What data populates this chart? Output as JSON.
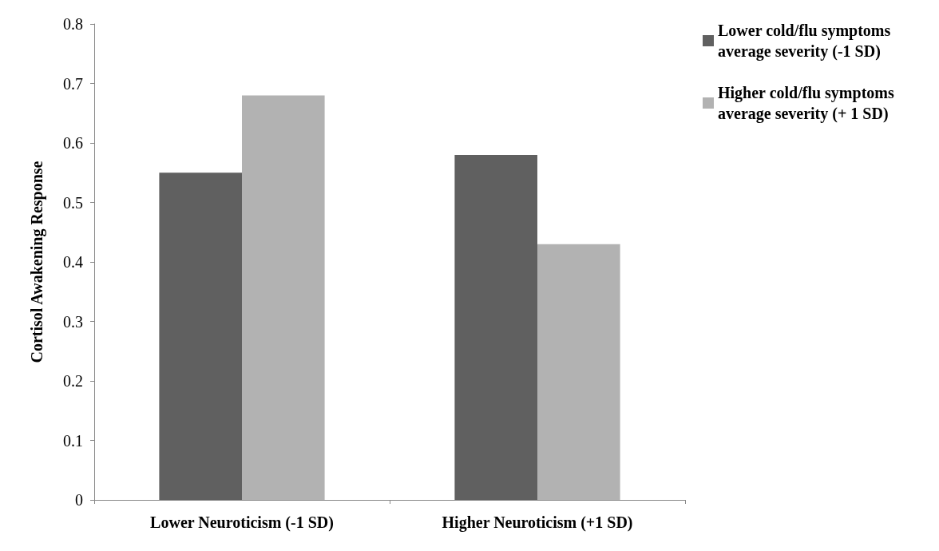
{
  "chart_data": {
    "type": "bar",
    "ylabel": "Cortisol Awakening Response",
    "categories": [
      "Lower Neuroticism (-1 SD)",
      "Higher Neuroticism (+1 SD)"
    ],
    "series": [
      {
        "name": "Lower cold/flu symptoms average severity (-1 SD)",
        "color": "#606060",
        "values": [
          0.55,
          0.58
        ]
      },
      {
        "name": "Higher cold/flu symptoms average severity (+ 1 SD)",
        "color": "#b2b2b2",
        "values": [
          0.68,
          0.43
        ]
      }
    ],
    "ylim": [
      0,
      0.8
    ],
    "yticks": [
      0,
      0.1,
      0.2,
      0.3,
      0.4,
      0.5,
      0.6,
      0.7,
      0.8
    ],
    "grid": false,
    "legend": "top right"
  }
}
